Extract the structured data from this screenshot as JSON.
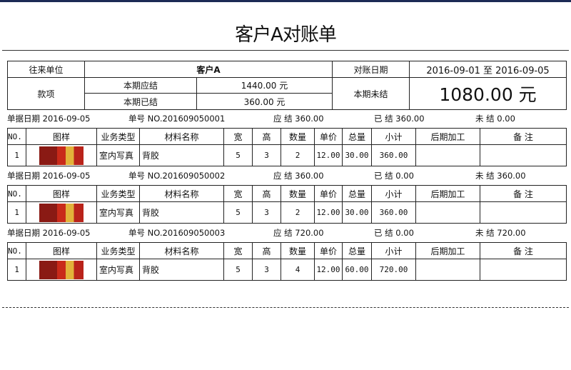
{
  "title": "客户A对账单",
  "header": {
    "partner_label": "往来单位",
    "partner": "客户A",
    "date_label": "对账日期",
    "date_range": "2016-09-01 至 2016-09-05",
    "item_label": "款项",
    "due_label": "本期应结",
    "due": "1440.00 元",
    "paid_label": "本期已结",
    "paid": "360.00 元",
    "unpaid_label": "本期未结",
    "unpaid": "1080.00 元"
  },
  "columns": [
    "NO.",
    "图样",
    "业务类型",
    "材料名称",
    "宽",
    "高",
    "数量",
    "单价",
    "总量",
    "小计",
    "后期加工",
    "备 注"
  ],
  "orders": [
    {
      "date": "单据日期 2016-09-05",
      "no": "单号 NO.201609050001",
      "due": "应 结 360.00",
      "paid": "已 结 360.00",
      "unpaid": "未 结 0.00",
      "row": {
        "no": "1",
        "type": "室内写真",
        "material": "背胶",
        "w": "5",
        "h": "3",
        "qty": "2",
        "price": "12.00",
        "total": "30.00",
        "subtotal": "360.00",
        "post": "",
        "note": ""
      }
    },
    {
      "date": "单据日期 2016-09-05",
      "no": "单号 NO.201609050002",
      "due": "应 结 360.00",
      "paid": "已 结 0.00",
      "unpaid": "未 结 360.00",
      "row": {
        "no": "1",
        "type": "室内写真",
        "material": "背胶",
        "w": "5",
        "h": "3",
        "qty": "2",
        "price": "12.00",
        "total": "30.00",
        "subtotal": "360.00",
        "post": "",
        "note": ""
      }
    },
    {
      "date": "单据日期 2016-09-05",
      "no": "单号 NO.201609050003",
      "due": "应 结 720.00",
      "paid": "已 结 0.00",
      "unpaid": "未 结 720.00",
      "row": {
        "no": "1",
        "type": "室内写真",
        "material": "背胶",
        "w": "5",
        "h": "3",
        "qty": "4",
        "price": "12.00",
        "total": "60.00",
        "subtotal": "720.00",
        "post": "",
        "note": ""
      }
    }
  ]
}
